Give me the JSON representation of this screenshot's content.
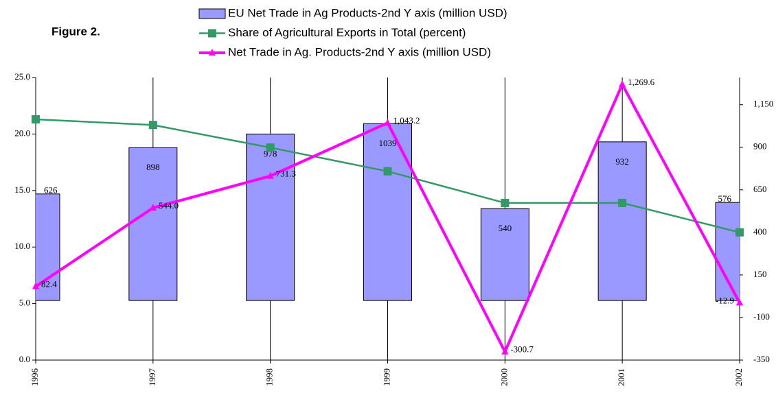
{
  "chart_data": {
    "type": "bar",
    "title": "Figure 2.",
    "categories": [
      "1996",
      "1997",
      "1998",
      "1999",
      "2000",
      "2001",
      "2002"
    ],
    "series": [
      {
        "name": "EU Net Trade in Ag Products-2nd Y axis (million USD)",
        "type": "bar",
        "axis": "y2",
        "color": "#9999ff",
        "values": [
          626,
          898,
          978,
          1039,
          540,
          932,
          576
        ]
      },
      {
        "name": "Share of Agricultural Exports in Total (percent)",
        "type": "line",
        "marker": "square",
        "color": "#339966",
        "values": [
          21.3,
          20.8,
          18.8,
          16.7,
          13.9,
          13.9,
          11.3
        ]
      },
      {
        "name": "Net Trade in Ag. Products-2nd Y axis (million USD)",
        "type": "line",
        "marker": "triangle",
        "axis": "y2",
        "color": "#ff00ff",
        "values": [
          82.4,
          544.0,
          731.3,
          1043.2,
          -300.7,
          1269.6,
          -12.9
        ],
        "value_labels": [
          "82.4",
          "544.0",
          "731.3",
          "1,043.2",
          "-300.7",
          "1,269.6",
          "-12.9"
        ]
      }
    ],
    "ylim": [
      0,
      25
    ],
    "yticks": [
      {
        "value": 0,
        "label": "0.0"
      },
      {
        "value": 5,
        "label": "5.0"
      },
      {
        "value": 10,
        "label": "10.0"
      },
      {
        "value": 15,
        "label": "15.0"
      },
      {
        "value": 20,
        "label": "20.0"
      },
      {
        "value": 25,
        "label": "25.0"
      }
    ],
    "y2lim": [
      -350,
      1310
    ],
    "y2ticks": [
      -350,
      -100,
      150,
      400,
      650,
      900,
      {
        "value": 1150,
        "label": "1,150"
      }
    ],
    "grid": "x"
  }
}
